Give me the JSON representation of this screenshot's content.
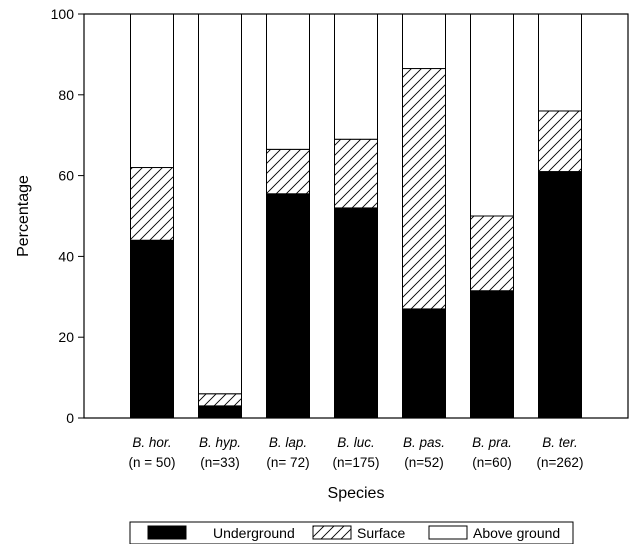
{
  "chart_data": {
    "type": "bar",
    "stacked": true,
    "categories": [
      "B. hor.",
      "B. hyp.",
      "B. lap.",
      "B. luc.",
      "B. pas.",
      "B. pra.",
      "B. ter."
    ],
    "sample_sizes": [
      "(n = 50)",
      "(n=33)",
      "(n= 72)",
      "(n=175)",
      "(n=52)",
      "(n=60)",
      "(n=262)"
    ],
    "series": [
      {
        "name": "Underground",
        "pattern": "solid",
        "color": "#000000",
        "values": [
          44,
          3,
          55.5,
          52,
          27,
          31.5,
          61
        ]
      },
      {
        "name": "Surface",
        "pattern": "hatch",
        "color": "#ffffff",
        "values": [
          18,
          3,
          11,
          17,
          59.5,
          18.5,
          15
        ]
      },
      {
        "name": "Above ground",
        "pattern": "open",
        "color": "#ffffff",
        "values": [
          38,
          94,
          33.5,
          31,
          13.5,
          50,
          24
        ]
      }
    ],
    "xlabel": "Species",
    "ylabel": "Percentage",
    "ylim": [
      0,
      100
    ],
    "yticks": [
      0,
      20,
      40,
      60,
      80,
      100
    ],
    "grid": false,
    "legend_position": "bottom"
  }
}
